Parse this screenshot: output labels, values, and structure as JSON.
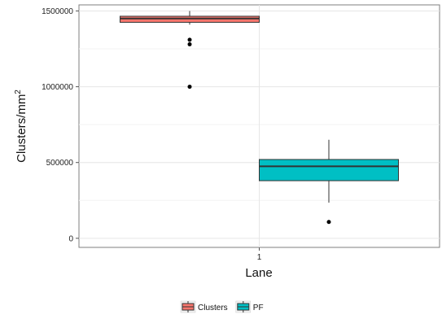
{
  "chart_data": {
    "type": "boxplot",
    "xlabel": "Lane",
    "ylabel_main": "Clusters/mm",
    "ylabel_sup": "2",
    "categories": [
      "1"
    ],
    "ylim": [
      -60000,
      1540000
    ],
    "yticks": [
      0,
      500000,
      1000000,
      1500000
    ],
    "ytick_labels": [
      "0",
      "500000",
      "1000000",
      "1500000"
    ],
    "grid": true,
    "legend_position": "bottom",
    "series": [
      {
        "name": "Clusters",
        "color": "#f8766d",
        "whisker_low": 1410000,
        "q1": 1425000,
        "median": 1450000,
        "q3": 1465000,
        "whisker_high": 1500000,
        "outliers": [
          1310000,
          1280000,
          1000000
        ]
      },
      {
        "name": "PF",
        "color": "#00bfc4",
        "whisker_low": 235000,
        "q1": 380000,
        "median": 475000,
        "q3": 520000,
        "whisker_high": 650000,
        "outliers": [
          108000
        ]
      }
    ]
  }
}
